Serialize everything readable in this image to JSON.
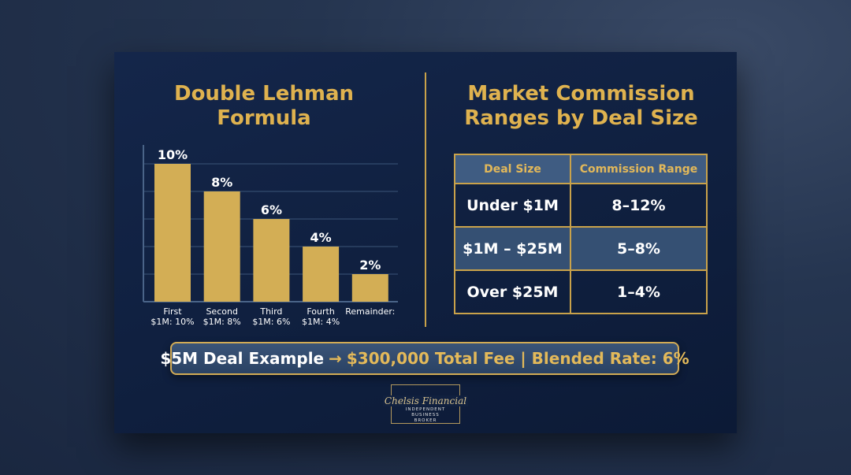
{
  "left": {
    "title_line1": "Double Lehman",
    "title_line2": "Formula"
  },
  "chart_data": {
    "type": "bar",
    "title": "Double Lehman Formula",
    "categories": [
      [
        "First",
        "$1M: 10%"
      ],
      [
        "Second",
        "$1M: 8%"
      ],
      [
        "Third",
        "$1M: 6%"
      ],
      [
        "Fourth",
        "$1M: 4%"
      ],
      [
        "Remainder:",
        ""
      ]
    ],
    "values": [
      10,
      8,
      6,
      4,
      2
    ],
    "data_labels": [
      "10%",
      "8%",
      "6%",
      "4%",
      "2%"
    ],
    "ylim": [
      0,
      10
    ],
    "grid": true,
    "bar_color": "#d3ae55"
  },
  "right": {
    "title_line1": "Market Commission",
    "title_line2": "Ranges by Deal Size",
    "table": {
      "headers": [
        "Deal Size",
        "Commission Range"
      ],
      "rows": [
        [
          "Under $1M",
          "8–12%"
        ],
        [
          "$1M – $25M",
          "5–8%"
        ],
        [
          "Over $25M",
          "1–4%"
        ]
      ]
    }
  },
  "banner": {
    "part1": "$5M Deal Example",
    "arrow": "→",
    "part2": "$300,000 Total Fee | Blended Rate: 6%"
  },
  "logo": {
    "name": "Chelsis Financial",
    "sub1": "INDEPENDENT",
    "sub2": "BUSINESS",
    "sub3": "BROKER"
  },
  "colors": {
    "gold": "#dfb24f",
    "navy": "#0f1f3e"
  }
}
